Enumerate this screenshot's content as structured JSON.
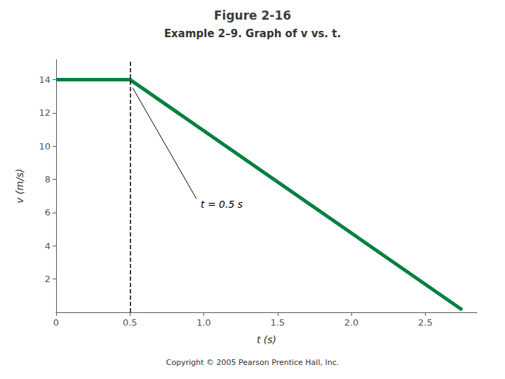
{
  "chart_data": {
    "type": "line",
    "title": "Figure 2-16",
    "subtitle": "Example 2–9. Graph of v vs. t.",
    "xlabel": "t (s)",
    "ylabel": "v (m/s)",
    "x": [
      0,
      0.5,
      2.75
    ],
    "values": [
      14,
      14,
      0.15
    ],
    "color": "#008040",
    "xlim": [
      0,
      2.85
    ],
    "ylim": [
      0,
      15.2
    ],
    "xticks": [
      0,
      0.5,
      {
        "value": 1.0,
        "label": "1.0"
      },
      1.5,
      {
        "value": 2.0,
        "label": "2.0"
      },
      2.5
    ],
    "yticks": [
      2,
      4,
      6,
      8,
      10,
      12,
      14
    ],
    "grid": false,
    "vline": 0.5,
    "annotations": [
      {
        "text": "t = 0.5 s",
        "xy": [
          0.5,
          13.5
        ],
        "xytext": [
          0.95,
          6.5
        ]
      }
    ],
    "footnote": "Copyright © 2005 Pearson Prentice Hall, Inc."
  }
}
